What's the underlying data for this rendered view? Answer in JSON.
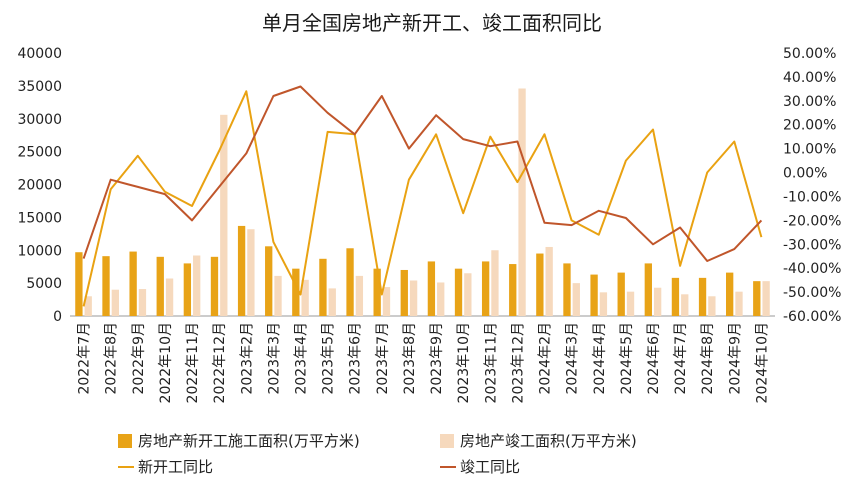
{
  "chart_data": {
    "type": "bar",
    "title": "单月全国房地产新开工、竣工面积同比",
    "categories": [
      "2022年7月",
      "2022年8月",
      "2022年9月",
      "2022年10月",
      "2022年11月",
      "2022年12月",
      "2023年2月",
      "2023年3月",
      "2023年4月",
      "2023年5月",
      "2023年6月",
      "2023年7月",
      "2023年8月",
      "2023年9月",
      "2023年10月",
      "2023年11月",
      "2023年12月",
      "2024年2月",
      "2024年3月",
      "2024年4月",
      "2024年5月",
      "2024年6月",
      "2024年7月",
      "2024年8月",
      "2024年9月",
      "2024年10月"
    ],
    "left_axis": {
      "ylim": [
        0,
        40000
      ],
      "ticks": [
        "0",
        "5000",
        "10000",
        "15000",
        "20000",
        "25000",
        "30000",
        "35000",
        "40000"
      ]
    },
    "right_axis": {
      "ylim": [
        -0.6,
        0.5
      ],
      "ticks": [
        "-60.00%",
        "-50.00%",
        "-40.00%",
        "-30.00%",
        "-20.00%",
        "-10.00%",
        "0.00%",
        "10.00%",
        "20.00%",
        "30.00%",
        "40.00%",
        "50.00%"
      ]
    },
    "series": [
      {
        "name": "房地产新开工施工面积(万平方米)",
        "type": "bar",
        "axis": "left",
        "color": "#E8A317",
        "values": [
          9700,
          9100,
          9800,
          9000,
          8000,
          9000,
          13700,
          10600,
          7200,
          8700,
          10300,
          7200,
          7000,
          8300,
          7200,
          8300,
          7900,
          9500,
          8000,
          6300,
          6600,
          8000,
          5800,
          5800,
          6600,
          5300
        ]
      },
      {
        "name": "房地产竣工面积(万平方米)",
        "type": "bar",
        "axis": "left",
        "color": "#F6D9BD",
        "values": [
          3000,
          4000,
          4100,
          5700,
          9200,
          30600,
          13200,
          6100,
          5500,
          4200,
          6100,
          4400,
          5400,
          5100,
          6500,
          10000,
          34600,
          10500,
          5000,
          3600,
          3700,
          4300,
          3300,
          3000,
          3700,
          5300
        ]
      },
      {
        "name": "新开工同比",
        "type": "line",
        "axis": "right",
        "color": "#E9A212",
        "values": [
          -0.56,
          -0.07,
          0.07,
          -0.08,
          -0.14,
          0.09,
          0.34,
          -0.29,
          -0.51,
          0.17,
          0.16,
          -0.51,
          -0.03,
          0.16,
          -0.17,
          0.15,
          -0.04,
          0.16,
          -0.2,
          -0.26,
          0.05,
          0.18,
          -0.39,
          0.0,
          0.13,
          -0.27
        ]
      },
      {
        "name": "竣工同比",
        "type": "line",
        "axis": "right",
        "color": "#C0562B",
        "values": [
          -0.36,
          -0.03,
          -0.06,
          -0.09,
          -0.2,
          -0.06,
          0.08,
          0.32,
          0.36,
          0.25,
          0.16,
          0.32,
          0.1,
          0.24,
          0.14,
          0.11,
          0.13,
          -0.21,
          -0.22,
          -0.16,
          -0.19,
          -0.3,
          -0.23,
          -0.37,
          -0.32,
          -0.2
        ]
      }
    ],
    "legend_position": "bottom",
    "grid": false
  }
}
